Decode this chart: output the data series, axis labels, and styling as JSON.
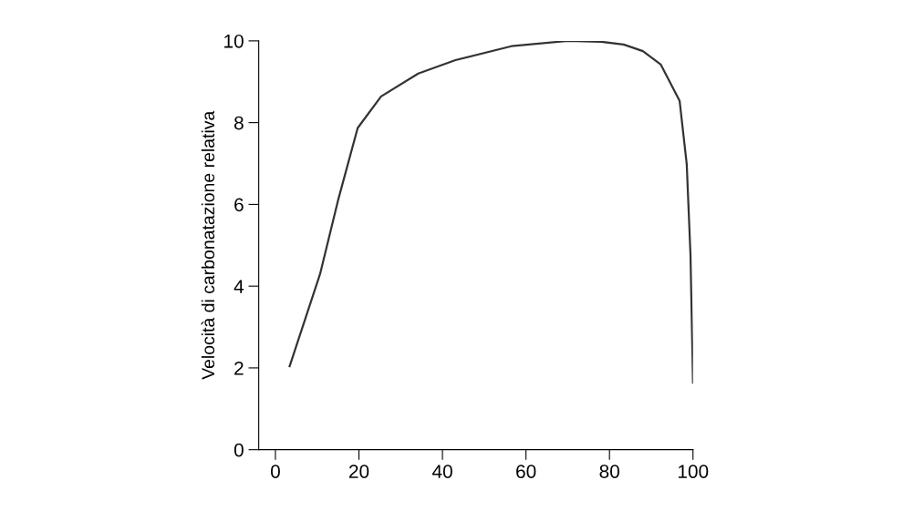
{
  "chart_data": {
    "type": "line",
    "ylabel": "Velocità di carbonatazione relativa",
    "x": [
      3.4,
      10.7,
      15,
      19.7,
      25.3,
      34.2,
      43.1,
      56.5,
      70,
      78,
      83.4,
      88,
      92.3,
      96.8,
      98.5,
      99.4,
      100
    ],
    "series": [
      {
        "color": "#333333",
        "values": [
          2.04,
          4.3,
          6.1,
          7.87,
          8.64,
          9.2,
          9.53,
          9.87,
          10.0,
          9.98,
          9.91,
          9.75,
          9.42,
          8.53,
          6.98,
          4.76,
          1.64
        ]
      }
    ],
    "xlim": [
      -4,
      100
    ],
    "ylim": [
      0,
      10
    ],
    "xticks": [
      0,
      20,
      40,
      60,
      80,
      100
    ],
    "yticks": [
      0,
      2,
      4,
      6,
      8,
      10
    ],
    "grid": false,
    "legend": false,
    "marker": "none",
    "line_style": "solid"
  }
}
